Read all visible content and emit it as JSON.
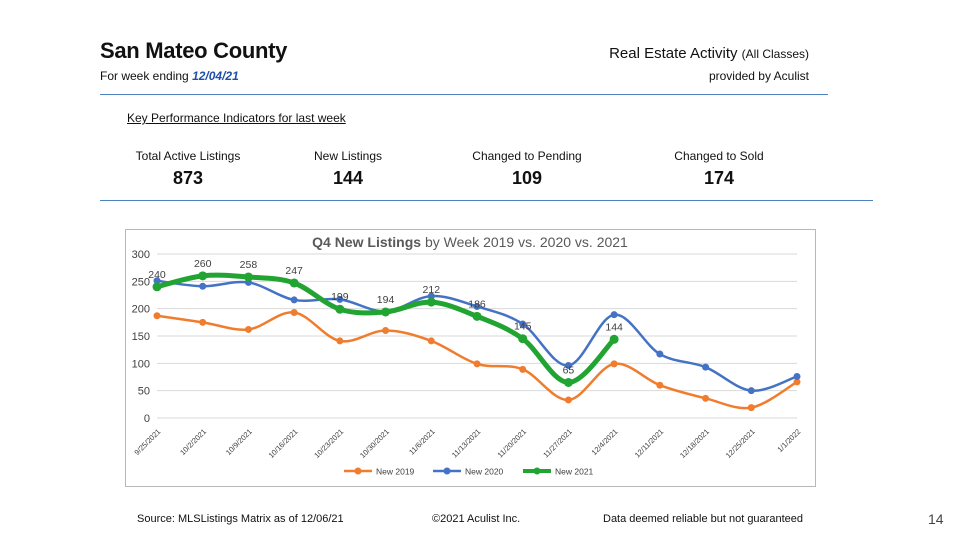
{
  "header": {
    "county": "San Mateo County",
    "week_prefix": "For week ending ",
    "week_date": "12/04/21",
    "title": "Real Estate Activity ",
    "title_sub": "(All Classes)",
    "provider": "provided by Aculist"
  },
  "kpi": {
    "heading": "Key Performance Indicators for last week",
    "items": [
      {
        "label": "Total Active Listings",
        "value": "873"
      },
      {
        "label": "New Listings",
        "value": "144"
      },
      {
        "label": "Changed to Pending",
        "value": "109"
      },
      {
        "label": "Changed to Sold",
        "value": "174"
      }
    ]
  },
  "footer": {
    "source": "Source: MLSListings Matrix as of 12/06/21",
    "copyright": "©2021 Aculist Inc.",
    "disclaimer": "Data deemed reliable but not guaranteed"
  },
  "page_number": "14",
  "colors": {
    "new_2019": "#f07c2e",
    "new_2020": "#4472c4",
    "new_2021": "#22a433",
    "grid": "#d9d9d9"
  },
  "chart_data": {
    "type": "line",
    "title_bold": "Q4 New Listings",
    "title_rest": " by Week 2019 vs. 2020 vs. 2021",
    "xlabel": "",
    "ylabel": "",
    "ylim": [
      0,
      300
    ],
    "yticks": [
      "0",
      "50",
      "100",
      "150",
      "200",
      "250",
      "300"
    ],
    "grid": true,
    "legend_position": "bottom",
    "categories": [
      "9/25/2021",
      "10/2/2021",
      "10/9/2021",
      "10/16/2021",
      "10/23/2021",
      "10/30/2021",
      "11/6/2021",
      "11/13/2021",
      "11/20/2021",
      "11/27/2021",
      "12/4/2021",
      "12/11/2021",
      "12/18/2021",
      "12/25/2021",
      "1/1/2022"
    ],
    "series": [
      {
        "name": "New 2019",
        "color": "#f07c2e",
        "labels": false,
        "values": [
          187,
          175,
          162,
          193,
          141,
          160,
          141,
          99,
          89,
          33,
          99,
          60,
          36,
          19,
          66
        ]
      },
      {
        "name": "New 2020",
        "color": "#4472c4",
        "labels": false,
        "values": [
          251,
          241,
          248,
          216,
          217,
          195,
          223,
          204,
          172,
          96,
          189,
          117,
          93,
          50,
          76
        ]
      },
      {
        "name": "New 2021",
        "color": "#22a433",
        "labels": true,
        "values": [
          240,
          260,
          258,
          247,
          199,
          194,
          212,
          186,
          145,
          65,
          144,
          null,
          null,
          null,
          null
        ],
        "data_labels": [
          "240",
          "260",
          "258",
          "247",
          "199",
          "194",
          "212",
          "186",
          "145",
          "65",
          "144"
        ]
      }
    ]
  }
}
